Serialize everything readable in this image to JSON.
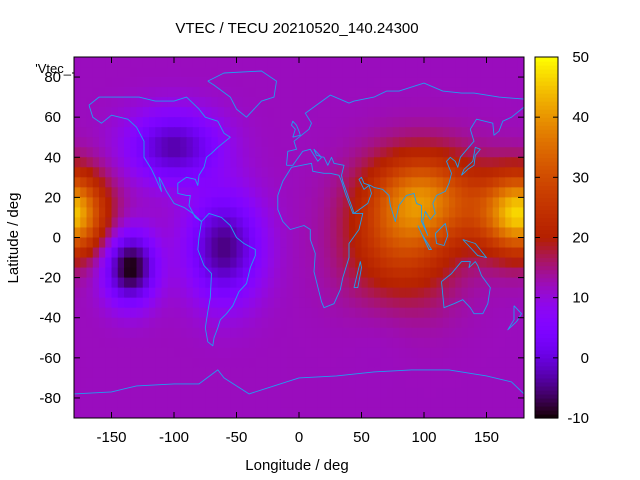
{
  "chart_data": {
    "type": "heatmap",
    "title": "VTEC / TECU 20210520_140.24300",
    "xlabel": "Longitude / deg",
    "ylabel": "Latitude / deg",
    "xlim": [
      -180,
      180
    ],
    "ylim": [
      -90,
      90
    ],
    "x_ticks": [
      -150,
      -100,
      -50,
      0,
      50,
      100,
      150
    ],
    "y_ticks": [
      -80,
      -60,
      -40,
      -20,
      0,
      20,
      40,
      60,
      80
    ],
    "colorbar": {
      "range": [
        -10,
        50
      ],
      "ticks": [
        -10,
        0,
        10,
        20,
        30,
        40,
        50
      ],
      "palette": "gnuplot-pm3d"
    },
    "legend_key": "'Vtec_",
    "features": [
      {
        "lon": 100,
        "lat": 20,
        "vtec": 34,
        "sigma_lon": 30,
        "sigma_lat": 16
      },
      {
        "lon": 80,
        "lat": -5,
        "vtec": 26,
        "sigma_lon": 30,
        "sigma_lat": 22
      },
      {
        "lon": 170,
        "lat": 12,
        "vtec": 30,
        "sigma_lon": 22,
        "sigma_lat": 14
      },
      {
        "lon": -180,
        "lat": 12,
        "vtec": 29,
        "sigma_lon": 18,
        "sigma_lat": 14
      },
      {
        "lon": 95,
        "lat": 45,
        "vtec": 12,
        "sigma_lon": 35,
        "sigma_lat": 12
      },
      {
        "lon": 70,
        "lat": -35,
        "vtec": 10,
        "sigma_lon": 22,
        "sigma_lat": 16
      },
      {
        "lon": -135,
        "lat": -15,
        "vtec": -10,
        "sigma_lon": 14,
        "sigma_lat": 12
      },
      {
        "lon": -60,
        "lat": -5,
        "vtec": -5,
        "sigma_lon": 20,
        "sigma_lat": 18
      },
      {
        "lon": -100,
        "lat": 45,
        "vtec": -3,
        "sigma_lon": 25,
        "sigma_lat": 12
      }
    ],
    "background_vtec": 12,
    "coastlines": [
      {
        "name": "north-america",
        "lonlat": [
          [
            -168,
            66
          ],
          [
            -160,
            70
          ],
          [
            -140,
            70
          ],
          [
            -128,
            70
          ],
          [
            -115,
            68
          ],
          [
            -100,
            68
          ],
          [
            -90,
            70
          ],
          [
            -80,
            64
          ],
          [
            -75,
            60
          ],
          [
            -65,
            58
          ],
          [
            -60,
            52
          ],
          [
            -55,
            50
          ],
          [
            -65,
            45
          ],
          [
            -70,
            42
          ],
          [
            -74,
            40
          ],
          [
            -76,
            35
          ],
          [
            -80,
            31
          ],
          [
            -81,
            26
          ],
          [
            -83,
            29
          ],
          [
            -90,
            30
          ],
          [
            -97,
            27
          ],
          [
            -97,
            22
          ],
          [
            -90,
            21
          ],
          [
            -87,
            21
          ],
          [
            -88,
            16
          ],
          [
            -83,
            10
          ],
          [
            -78,
            8
          ],
          [
            -85,
            12
          ],
          [
            -92,
            15
          ],
          [
            -100,
            17
          ],
          [
            -106,
            23
          ],
          [
            -110,
            28
          ],
          [
            -112,
            30
          ],
          [
            -110,
            23
          ],
          [
            -115,
            30
          ],
          [
            -118,
            34
          ],
          [
            -124,
            40
          ],
          [
            -124,
            48
          ],
          [
            -130,
            55
          ],
          [
            -137,
            59
          ],
          [
            -150,
            61
          ],
          [
            -158,
            57
          ],
          [
            -165,
            60
          ],
          [
            -168,
            66
          ]
        ]
      },
      {
        "name": "south-america",
        "lonlat": [
          [
            -78,
            8
          ],
          [
            -72,
            12
          ],
          [
            -62,
            10
          ],
          [
            -55,
            6
          ],
          [
            -50,
            0
          ],
          [
            -44,
            -3
          ],
          [
            -35,
            -6
          ],
          [
            -35,
            -9
          ],
          [
            -39,
            -15
          ],
          [
            -42,
            -23
          ],
          [
            -48,
            -27
          ],
          [
            -53,
            -34
          ],
          [
            -58,
            -38
          ],
          [
            -63,
            -41
          ],
          [
            -65,
            -45
          ],
          [
            -68,
            -50
          ],
          [
            -69,
            -54
          ],
          [
            -73,
            -52
          ],
          [
            -75,
            -45
          ],
          [
            -73,
            -37
          ],
          [
            -71,
            -30
          ],
          [
            -70,
            -18
          ],
          [
            -76,
            -14
          ],
          [
            -81,
            -6
          ],
          [
            -80,
            0
          ],
          [
            -78,
            8
          ]
        ]
      },
      {
        "name": "greenland",
        "lonlat": [
          [
            -73,
            78
          ],
          [
            -60,
            82
          ],
          [
            -30,
            83
          ],
          [
            -18,
            78
          ],
          [
            -20,
            70
          ],
          [
            -30,
            68
          ],
          [
            -42,
            60
          ],
          [
            -50,
            64
          ],
          [
            -55,
            70
          ],
          [
            -68,
            76
          ],
          [
            -73,
            78
          ]
        ]
      },
      {
        "name": "eurasia",
        "lonlat": [
          [
            -10,
            36
          ],
          [
            -9,
            43
          ],
          [
            -2,
            44
          ],
          [
            -4,
            48
          ],
          [
            2,
            51
          ],
          [
            8,
            54
          ],
          [
            10,
            57
          ],
          [
            5,
            62
          ],
          [
            14,
            66
          ],
          [
            25,
            71
          ],
          [
            40,
            67
          ],
          [
            44,
            68
          ],
          [
            60,
            70
          ],
          [
            70,
            73
          ],
          [
            80,
            73
          ],
          [
            100,
            77
          ],
          [
            115,
            73
          ],
          [
            130,
            72
          ],
          [
            140,
            72
          ],
          [
            160,
            70
          ],
          [
            180,
            69
          ],
          [
            180,
            65
          ],
          [
            170,
            60
          ],
          [
            163,
            58
          ],
          [
            160,
            53
          ],
          [
            156,
            51
          ],
          [
            155,
            57
          ],
          [
            142,
            59
          ],
          [
            137,
            54
          ],
          [
            140,
            48
          ],
          [
            133,
            43
          ],
          [
            129,
            40
          ],
          [
            127,
            35
          ],
          [
            125,
            38
          ],
          [
            121,
            40
          ],
          [
            118,
            38
          ],
          [
            122,
            32
          ],
          [
            120,
            27
          ],
          [
            117,
            23
          ],
          [
            110,
            21
          ],
          [
            107,
            17
          ],
          [
            109,
            12
          ],
          [
            105,
            9
          ],
          [
            101,
            13
          ],
          [
            99,
            8
          ],
          [
            103,
            1
          ],
          [
            98,
            8
          ],
          [
            98,
            16
          ],
          [
            94,
            17
          ],
          [
            92,
            22
          ],
          [
            86,
            21
          ],
          [
            80,
            16
          ],
          [
            77,
            8
          ],
          [
            73,
            16
          ],
          [
            72,
            21
          ],
          [
            67,
            24
          ],
          [
            60,
            25
          ],
          [
            57,
            26
          ],
          [
            52,
            27
          ],
          [
            50,
            30
          ],
          [
            48,
            29
          ],
          [
            52,
            24
          ],
          [
            56,
            26
          ],
          [
            58,
            22
          ],
          [
            55,
            17
          ],
          [
            44,
            12
          ],
          [
            43,
            14
          ],
          [
            39,
            21
          ],
          [
            35,
            28
          ],
          [
            34,
            31
          ],
          [
            36,
            36
          ],
          [
            28,
            37
          ],
          [
            26,
            40
          ],
          [
            23,
            36
          ],
          [
            20,
            40
          ],
          [
            14,
            41
          ],
          [
            12,
            44
          ],
          [
            18,
            40
          ],
          [
            15,
            38
          ],
          [
            9,
            44
          ],
          [
            3,
            43
          ],
          [
            -5,
            36
          ],
          [
            -10,
            36
          ]
        ]
      },
      {
        "name": "africa",
        "lonlat": [
          [
            -17,
            21
          ],
          [
            -13,
            28
          ],
          [
            -6,
            35
          ],
          [
            10,
            37
          ],
          [
            11,
            33
          ],
          [
            20,
            32
          ],
          [
            25,
            32
          ],
          [
            32,
            31
          ],
          [
            34,
            28
          ],
          [
            37,
            22
          ],
          [
            43,
            12
          ],
          [
            51,
            12
          ],
          [
            48,
            4
          ],
          [
            40,
            -3
          ],
          [
            40,
            -10
          ],
          [
            35,
            -20
          ],
          [
            33,
            -26
          ],
          [
            28,
            -33
          ],
          [
            20,
            -35
          ],
          [
            18,
            -32
          ],
          [
            12,
            -17
          ],
          [
            13,
            -8
          ],
          [
            9,
            -1
          ],
          [
            9,
            4
          ],
          [
            4,
            6
          ],
          [
            -7,
            4
          ],
          [
            -13,
            8
          ],
          [
            -17,
            14
          ],
          [
            -17,
            21
          ]
        ]
      },
      {
        "name": "madagascar",
        "lonlat": [
          [
            44,
            -25
          ],
          [
            49,
            -12
          ],
          [
            50,
            -15
          ],
          [
            47,
            -25
          ],
          [
            44,
            -25
          ]
        ]
      },
      {
        "name": "australia",
        "lonlat": [
          [
            114,
            -22
          ],
          [
            122,
            -18
          ],
          [
            130,
            -12
          ],
          [
            137,
            -12
          ],
          [
            136,
            -15
          ],
          [
            141,
            -12
          ],
          [
            143,
            -14
          ],
          [
            146,
            -19
          ],
          [
            153,
            -25
          ],
          [
            151,
            -33
          ],
          [
            147,
            -38
          ],
          [
            140,
            -38
          ],
          [
            137,
            -35
          ],
          [
            131,
            -31
          ],
          [
            124,
            -33
          ],
          [
            116,
            -35
          ],
          [
            114,
            -22
          ]
        ]
      },
      {
        "name": "new-zealand",
        "lonlat": [
          [
            172,
            -34
          ],
          [
            178,
            -38
          ],
          [
            174,
            -42
          ],
          [
            167,
            -46
          ],
          [
            172,
            -41
          ],
          [
            172,
            -34
          ]
        ]
      },
      {
        "name": "japan",
        "lonlat": [
          [
            130,
            31
          ],
          [
            135,
            34
          ],
          [
            140,
            36
          ],
          [
            141,
            41
          ],
          [
            145,
            44
          ],
          [
            141,
            45
          ],
          [
            139,
            38
          ],
          [
            132,
            34
          ],
          [
            130,
            31
          ]
        ]
      },
      {
        "name": "great-britain",
        "lonlat": [
          [
            -5,
            50
          ],
          [
            1,
            51
          ],
          [
            0,
            53
          ],
          [
            -2,
            56
          ],
          [
            -5,
            58
          ],
          [
            -6,
            56
          ],
          [
            -3,
            54
          ],
          [
            -5,
            50
          ]
        ]
      },
      {
        "name": "borneo",
        "lonlat": [
          [
            109,
            2
          ],
          [
            117,
            7
          ],
          [
            119,
            1
          ],
          [
            116,
            -4
          ],
          [
            110,
            -3
          ],
          [
            109,
            2
          ]
        ]
      },
      {
        "name": "sumatra",
        "lonlat": [
          [
            95,
            6
          ],
          [
            104,
            -6
          ],
          [
            106,
            -6
          ],
          [
            98,
            2
          ],
          [
            95,
            6
          ]
        ]
      },
      {
        "name": "new-guinea",
        "lonlat": [
          [
            131,
            -1
          ],
          [
            141,
            -3
          ],
          [
            150,
            -10
          ],
          [
            143,
            -9
          ],
          [
            137,
            -5
          ],
          [
            131,
            -1
          ]
        ]
      },
      {
        "name": "antarctica",
        "lonlat": [
          [
            -180,
            -78
          ],
          [
            -150,
            -77
          ],
          [
            -130,
            -74
          ],
          [
            -100,
            -73
          ],
          [
            -80,
            -73
          ],
          [
            -65,
            -66
          ],
          [
            -60,
            -70
          ],
          [
            -40,
            -78
          ],
          [
            -20,
            -74
          ],
          [
            0,
            -70
          ],
          [
            30,
            -69
          ],
          [
            60,
            -67
          ],
          [
            90,
            -66
          ],
          [
            120,
            -66
          ],
          [
            150,
            -69
          ],
          [
            170,
            -72
          ],
          [
            180,
            -78
          ]
        ]
      }
    ]
  }
}
